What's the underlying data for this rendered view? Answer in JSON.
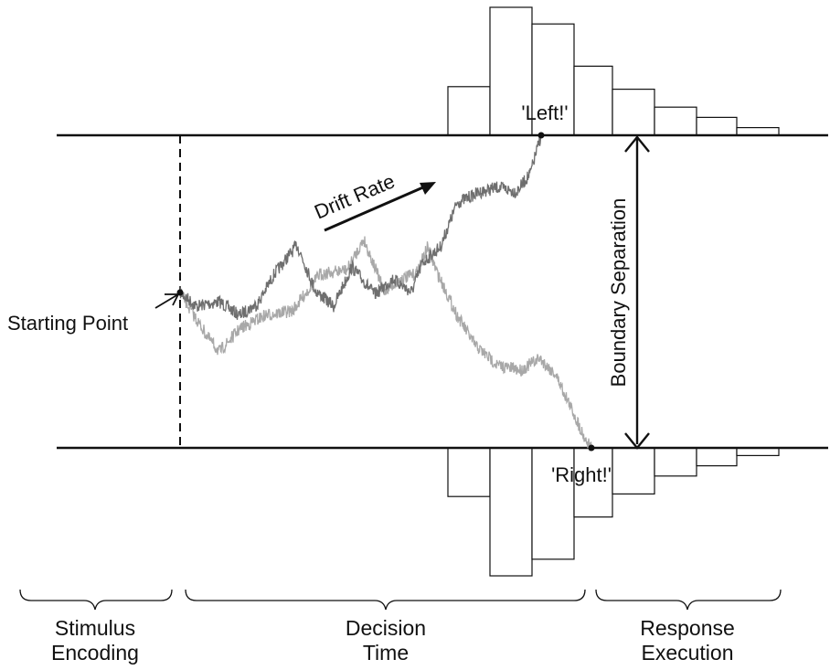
{
  "diagram": {
    "labels": {
      "drift_rate": "Drift Rate",
      "starting_point": "Starting Point",
      "boundary_separation": "Boundary Separation",
      "upper_response": "'Left!'",
      "lower_response": "'Right!'"
    },
    "phases": [
      {
        "line1": "Stimulus",
        "line2": "Encoding"
      },
      {
        "line1": "Decision",
        "line2": "Time"
      },
      {
        "line1": "Response",
        "line2": "Execution"
      }
    ],
    "colors": {
      "ink": "#111111",
      "upper_path": "#6e6e6e",
      "lower_path": "#a8a8a8",
      "histogram_fill": "#ffffff"
    },
    "upper_histogram_relative_heights": [
      0.38,
      1.0,
      0.87,
      0.54,
      0.36,
      0.22,
      0.14,
      0.06,
      0.03
    ],
    "lower_histogram_relative_heights": [
      0.38,
      1.0,
      0.87,
      0.54,
      0.36,
      0.22,
      0.14,
      0.06,
      0.03
    ]
  }
}
